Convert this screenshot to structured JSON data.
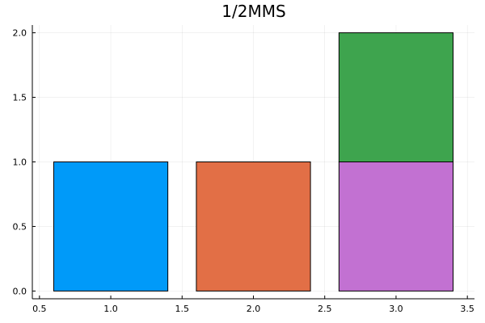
{
  "chart_data": {
    "type": "bar",
    "title": "1/2MMS",
    "xlabel": "",
    "ylabel": "",
    "xlim": [
      0.45,
      3.55
    ],
    "ylim": [
      -0.06,
      2.06
    ],
    "x_ticks": [
      0.5,
      1.0,
      1.5,
      2.0,
      2.5,
      3.0,
      3.5
    ],
    "x_tick_labels": [
      "0.5",
      "1.0",
      "1.5",
      "2.0",
      "2.5",
      "3.0",
      "3.5"
    ],
    "y_ticks": [
      0.0,
      0.5,
      1.0,
      1.5,
      2.0
    ],
    "y_tick_labels": [
      "0.0",
      "0.5",
      "1.0",
      "1.5",
      "2.0"
    ],
    "grid": true,
    "legend": false,
    "bars": [
      {
        "x0": 0.6,
        "x1": 1.4,
        "y0": 0,
        "y1": 1,
        "color": "#009af9"
      },
      {
        "x0": 1.6,
        "x1": 2.4,
        "y0": 0,
        "y1": 1,
        "color": "#e26f46"
      },
      {
        "x0": 2.6,
        "x1": 3.4,
        "y0": 0,
        "y1": 1,
        "color": "#c271d2"
      },
      {
        "x0": 2.6,
        "x1": 3.4,
        "y0": 1,
        "y1": 2,
        "color": "#3ea44e"
      }
    ]
  }
}
